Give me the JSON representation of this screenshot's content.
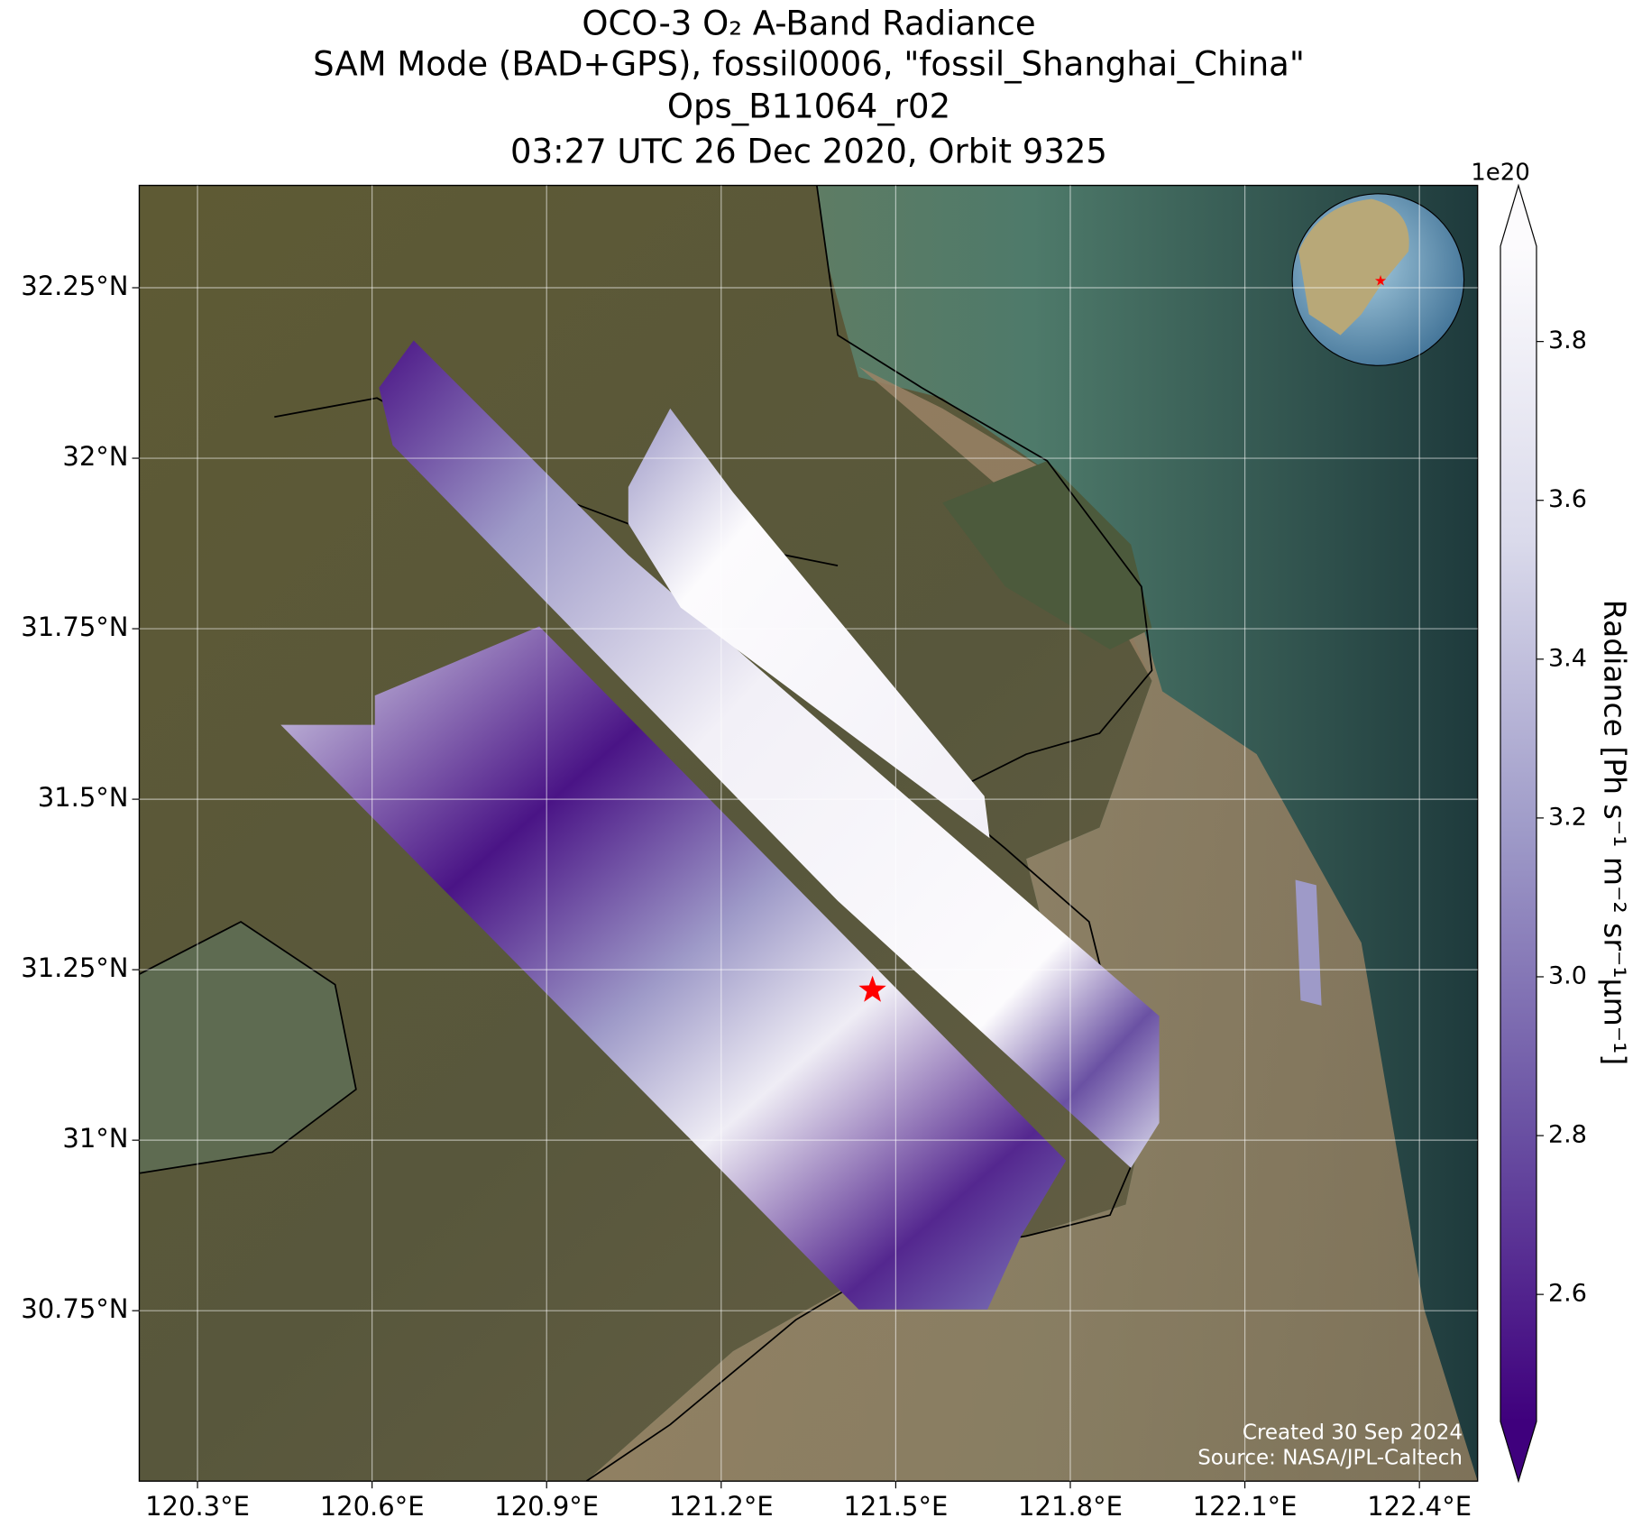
{
  "chart_data": {
    "type": "map",
    "title": [
      "OCO-3 O₂ A-Band Radiance",
      "SAM Mode (BAD+GPS), fossil0006, \"fossil_Shanghai_China\"",
      "Ops_B11064_r02",
      "03:27 UTC 26 Dec 2020, Orbit 9325"
    ],
    "xlim": [
      120.2,
      122.5
    ],
    "xticks": [
      {
        "value": 120.3,
        "label": "120.3°E"
      },
      {
        "value": 120.6,
        "label": "120.6°E"
      },
      {
        "value": 120.9,
        "label": "120.9°E"
      },
      {
        "value": 121.2,
        "label": "121.2°E"
      },
      {
        "value": 121.5,
        "label": "121.5°E"
      },
      {
        "value": 121.8,
        "label": "121.8°E"
      },
      {
        "value": 122.1,
        "label": "122.1°E"
      },
      {
        "value": 122.4,
        "label": "122.4°E"
      }
    ],
    "ylim": [
      30.5,
      32.4
    ],
    "yticks": [
      {
        "value": 30.75,
        "label": "30.75°N"
      },
      {
        "value": 31,
        "label": "31°N"
      },
      {
        "value": 31.25,
        "label": "31.25°N"
      },
      {
        "value": 31.5,
        "label": "31.5°N"
      },
      {
        "value": 31.75,
        "label": "31.75°N"
      },
      {
        "value": 32,
        "label": "32°N"
      },
      {
        "value": 32.25,
        "label": "32.25°N"
      }
    ],
    "grid": true,
    "target": {
      "lon": 121.46,
      "lat": 31.22,
      "color": "#ff0000"
    },
    "colorbar": {
      "label": "Radiance [Ph s⁻¹ m⁻² sr⁻¹μm⁻¹]",
      "scale_label": "1e20",
      "lim": [
        2.44,
        3.92
      ],
      "ticks": [
        2.6,
        2.8,
        {
          "value": 3.0,
          "label": "3.0"
        },
        3.2,
        3.4,
        3.6,
        3.8
      ],
      "colors": [
        "#3f007d",
        "#6a51a3",
        "#9e9ac8",
        "#dadaeb",
        "#fcfbfd"
      ]
    },
    "annotations": [
      "Created 30 Sep 2024",
      "Source: NASA/JPL-Caltech"
    ]
  }
}
